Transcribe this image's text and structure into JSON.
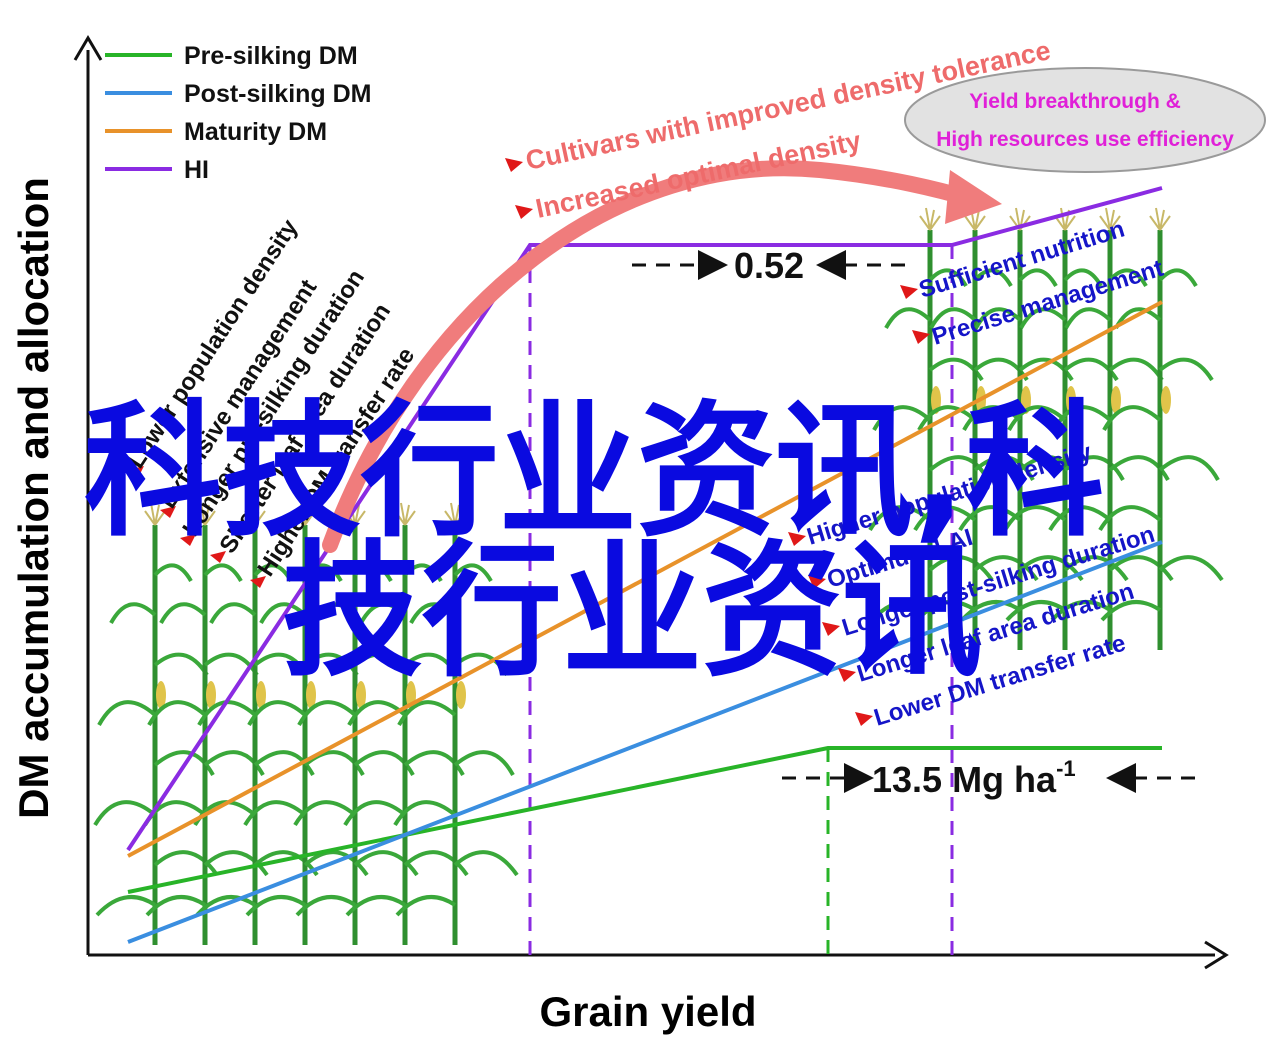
{
  "axes": {
    "y_title": "DM accumulation and allocation",
    "x_title": "Grain yield"
  },
  "legend": [
    {
      "label": "Pre-silking DM",
      "color": "#28b428"
    },
    {
      "label": "Post-silking DM",
      "color": "#3a8ee0"
    },
    {
      "label": "Maturity DM",
      "color": "#e8922a"
    },
    {
      "label": "HI",
      "color": "#8a2be2"
    }
  ],
  "left_labels": [
    "Lower population density",
    "Extensive management",
    "Longer pre-silking duration",
    "Shorter leaf area duration",
    "Higher DM transfer rate"
  ],
  "right_labels_top": [
    "Sufficient nutrition",
    "Precise management"
  ],
  "right_labels_bottom": [
    "Higher population density",
    "Optimum LAI",
    "Longer post-silking duration",
    "Longer leaf area duration",
    "Lower DM transfer rate"
  ],
  "arc_labels": {
    "line1": "Cultivars with improved density tolerance",
    "line2": "Increased optimal density"
  },
  "ellipse": {
    "line1": "Yield breakthrough &",
    "line2": "High resources use efficiency"
  },
  "hi_value": "0.52",
  "yield_value": "13.5 Mg ha",
  "yield_superscript": "-1",
  "watermark": {
    "line1": "科技行业资讯,科",
    "line2": "技行业资讯"
  },
  "icons": {
    "plants": "maize-plant-icon",
    "arrow": "red-curved-arrow",
    "pointers": "red-pointer-icon"
  },
  "colors": {
    "pre_silking": "#28b428",
    "post_silking": "#3a8ee0",
    "maturity": "#e8922a",
    "hi": "#8a2be2",
    "arrow": "#f07c7c",
    "right_text": "#1515c8",
    "ellipse_text": "#e020d8",
    "watermark": "#0a0ae0"
  }
}
